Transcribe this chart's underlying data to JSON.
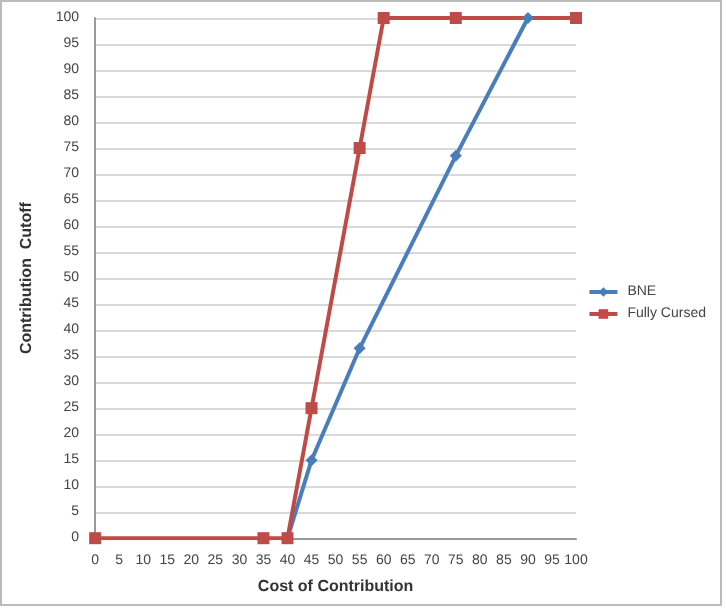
{
  "chart_data": {
    "type": "line",
    "xlabel": "Cost of Contribution",
    "ylabel": "Contribution  Cutoff",
    "xlim": [
      0,
      100
    ],
    "xticks": [
      0,
      5,
      10,
      15,
      20,
      25,
      30,
      35,
      40,
      45,
      50,
      55,
      60,
      65,
      70,
      75,
      80,
      85,
      90,
      95,
      100
    ],
    "ylim": [
      0,
      100
    ],
    "yticks": [
      0,
      5,
      10,
      15,
      20,
      25,
      30,
      35,
      40,
      45,
      50,
      55,
      60,
      65,
      70,
      75,
      80,
      85,
      90,
      95,
      100
    ],
    "grid": "y",
    "legend": "right",
    "series": [
      {
        "name": "BNE",
        "color": "#4a7ebb",
        "marker": "diamond",
        "x": [
          40,
          45,
          55,
          75,
          90
        ],
        "values": [
          0,
          15,
          36.5,
          73.5,
          100
        ]
      },
      {
        "name": "Fully Cursed",
        "color": "#be4b48",
        "marker": "square",
        "x": [
          0,
          35,
          40,
          45,
          55,
          60,
          75,
          100
        ],
        "values": [
          0,
          0,
          0,
          25,
          75,
          100,
          100,
          100
        ]
      }
    ]
  }
}
